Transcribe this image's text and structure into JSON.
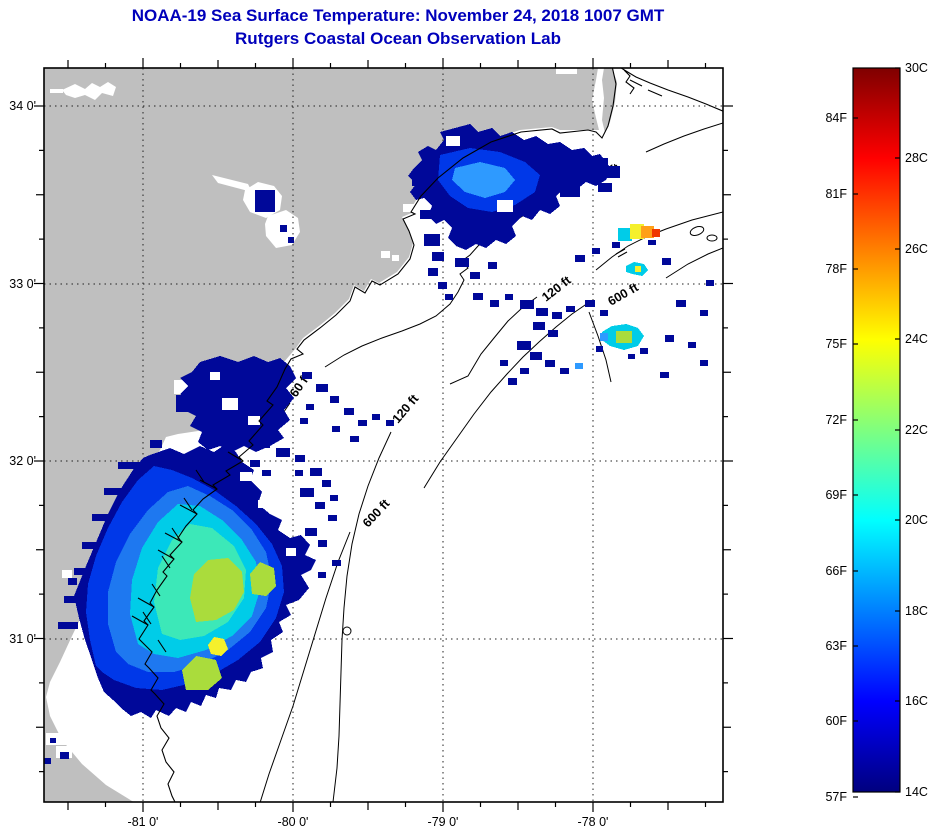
{
  "title": {
    "line1": "NOAA-19 Sea Surface Temperature:  November 24, 2018 1007 GMT",
    "line2": "Rutgers Coastal Ocean Observation Lab"
  },
  "palette": {
    "title_blue": "#0000BB",
    "land_gray": "#BFBFBF",
    "ocean_white": "#FFFFFF",
    "sst_navy": "#000899",
    "sst_blue": "#0038E8",
    "sst_midblue": "#1E78F0",
    "sst_lightblue": "#2E9AFF",
    "sst_cyan": "#00CCE8",
    "sst_teal": "#3CE8B8",
    "sst_yellowgreen": "#AADC3C",
    "sst_yellow": "#F5F02C",
    "sst_orange": "#FFA018",
    "sst_red": "#F03800"
  },
  "axes": {
    "lon_labels": [
      "-81 0'",
      "-80 0'",
      "-79 0'",
      "-78 0'"
    ],
    "lat_labels": [
      "34 0'",
      "33 0'",
      "32 0'",
      "31 0'"
    ]
  },
  "contour_labels": [
    {
      "text": "60 ft"
    },
    {
      "text": "120 ft"
    },
    {
      "text": "600 ft"
    },
    {
      "text": "60 ft"
    },
    {
      "text": "120 ft"
    },
    {
      "text": "600 ft"
    }
  ],
  "colorbar": {
    "fahrenheit_labels": [
      "84F",
      "81F",
      "78F",
      "75F",
      "72F",
      "69F",
      "66F",
      "63F",
      "60F",
      "57F"
    ],
    "celsius_labels": [
      "30C",
      "28C",
      "26C",
      "24C",
      "22C",
      "20C",
      "18C",
      "16C",
      "14C"
    ],
    "gradient_top_to_bottom": [
      "#7F0000",
      "#FF0000",
      "#FFFF00",
      "#7FFF7F",
      "#00FFFF",
      "#0000FF",
      "#00007F"
    ]
  }
}
